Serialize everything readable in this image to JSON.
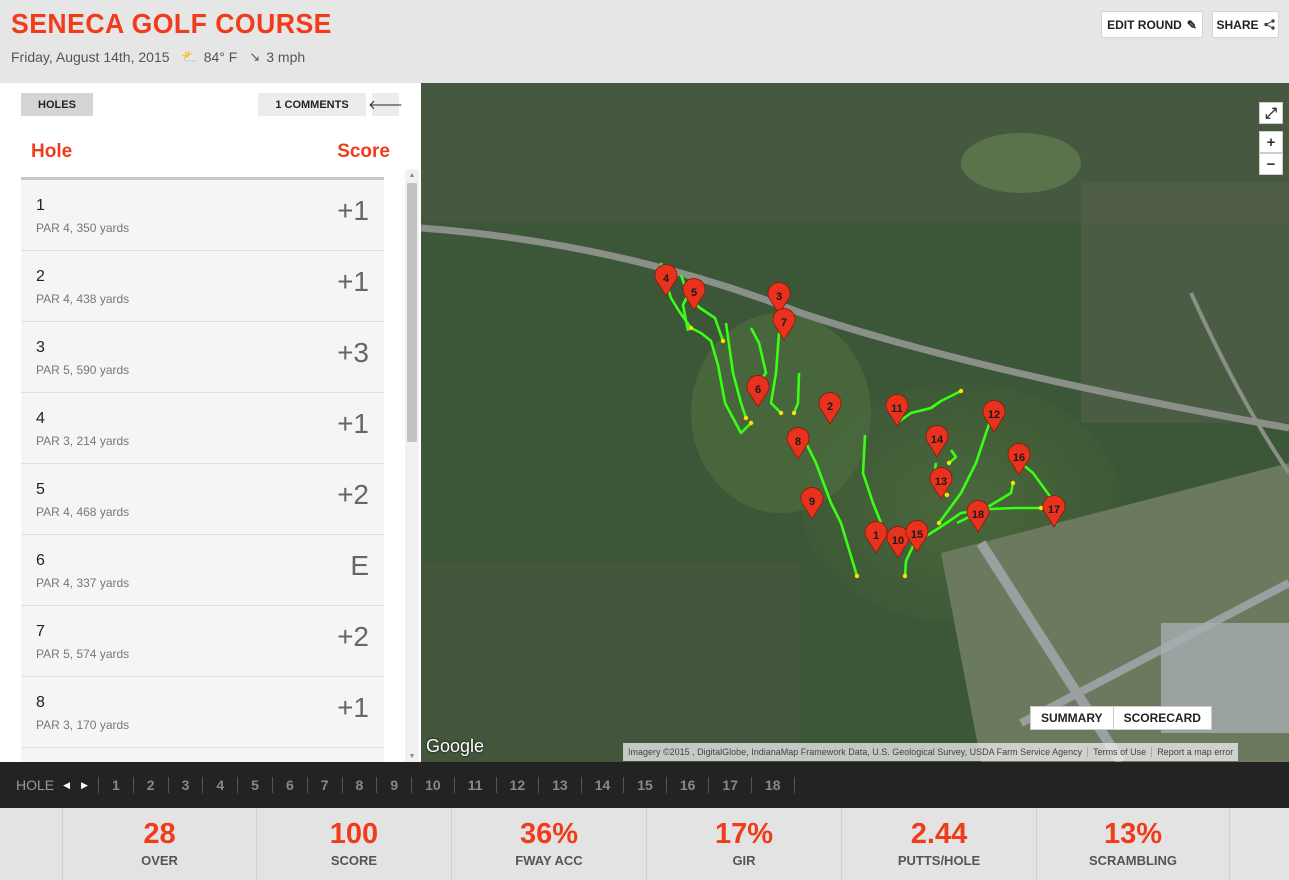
{
  "header": {
    "course_name": "SENECA GOLF COURSE",
    "date": "Friday, August 14th, 2015",
    "temperature": "84° F",
    "wind": "3 mph",
    "edit_label": "EDIT ROUND",
    "share_label": "SHARE"
  },
  "panel": {
    "holes_tab": "HOLES",
    "comments_tab": "1 COMMENTS",
    "col_hole": "Hole",
    "col_score": "Score"
  },
  "holes": [
    {
      "num": "1",
      "info": "PAR 4, 350 yards",
      "score": "+1"
    },
    {
      "num": "2",
      "info": "PAR 4, 438 yards",
      "score": "+1"
    },
    {
      "num": "3",
      "info": "PAR 5, 590 yards",
      "score": "+3"
    },
    {
      "num": "4",
      "info": "PAR 3, 214 yards",
      "score": "+1"
    },
    {
      "num": "5",
      "info": "PAR 4, 468 yards",
      "score": "+2"
    },
    {
      "num": "6",
      "info": "PAR 4, 337 yards",
      "score": "E"
    },
    {
      "num": "7",
      "info": "PAR 5, 574 yards",
      "score": "+2"
    },
    {
      "num": "8",
      "info": "PAR 3, 170 yards",
      "score": "+1"
    },
    {
      "num": "",
      "info": "",
      "score": ""
    }
  ],
  "map": {
    "summary_label": "SUMMARY",
    "scorecard_label": "SCORECARD",
    "google": "Google",
    "imagery": "Imagery ©2015 , DigitalGlobe, IndianaMap Framework Data, U.S. Geological Survey, USDA Farm Service Agency",
    "terms": "Terms of Use",
    "report": "Report a map error",
    "zoom_in": "+",
    "zoom_out": "−",
    "markers": [
      "1",
      "2",
      "3",
      "4",
      "5",
      "6",
      "7",
      "8",
      "9",
      "10",
      "11",
      "12",
      "13",
      "14",
      "15",
      "16",
      "17",
      "18"
    ]
  },
  "holenav": {
    "label": "HOLE",
    "numbers": [
      "1",
      "2",
      "3",
      "4",
      "5",
      "6",
      "7",
      "8",
      "9",
      "10",
      "11",
      "12",
      "13",
      "14",
      "15",
      "16",
      "17",
      "18"
    ]
  },
  "stats": [
    {
      "value": "28",
      "label": "OVER"
    },
    {
      "value": "100",
      "label": "SCORE"
    },
    {
      "value": "36%",
      "label": "FWAY ACC"
    },
    {
      "value": "17%",
      "label": "GIR"
    },
    {
      "value": "2.44",
      "label": "PUTTS/HOLE"
    },
    {
      "value": "13%",
      "label": "SCRAMBLING"
    }
  ],
  "colors": {
    "accent": "#f03c1a",
    "track": "#39ff14",
    "marker": "#e8321e"
  },
  "icons": {
    "weather": "partly-cloudy-icon",
    "wind": "wind-arrow-icon",
    "edit": "pencil-icon",
    "share": "share-icon",
    "back": "arrow-left-icon",
    "expand": "expand-icon"
  }
}
